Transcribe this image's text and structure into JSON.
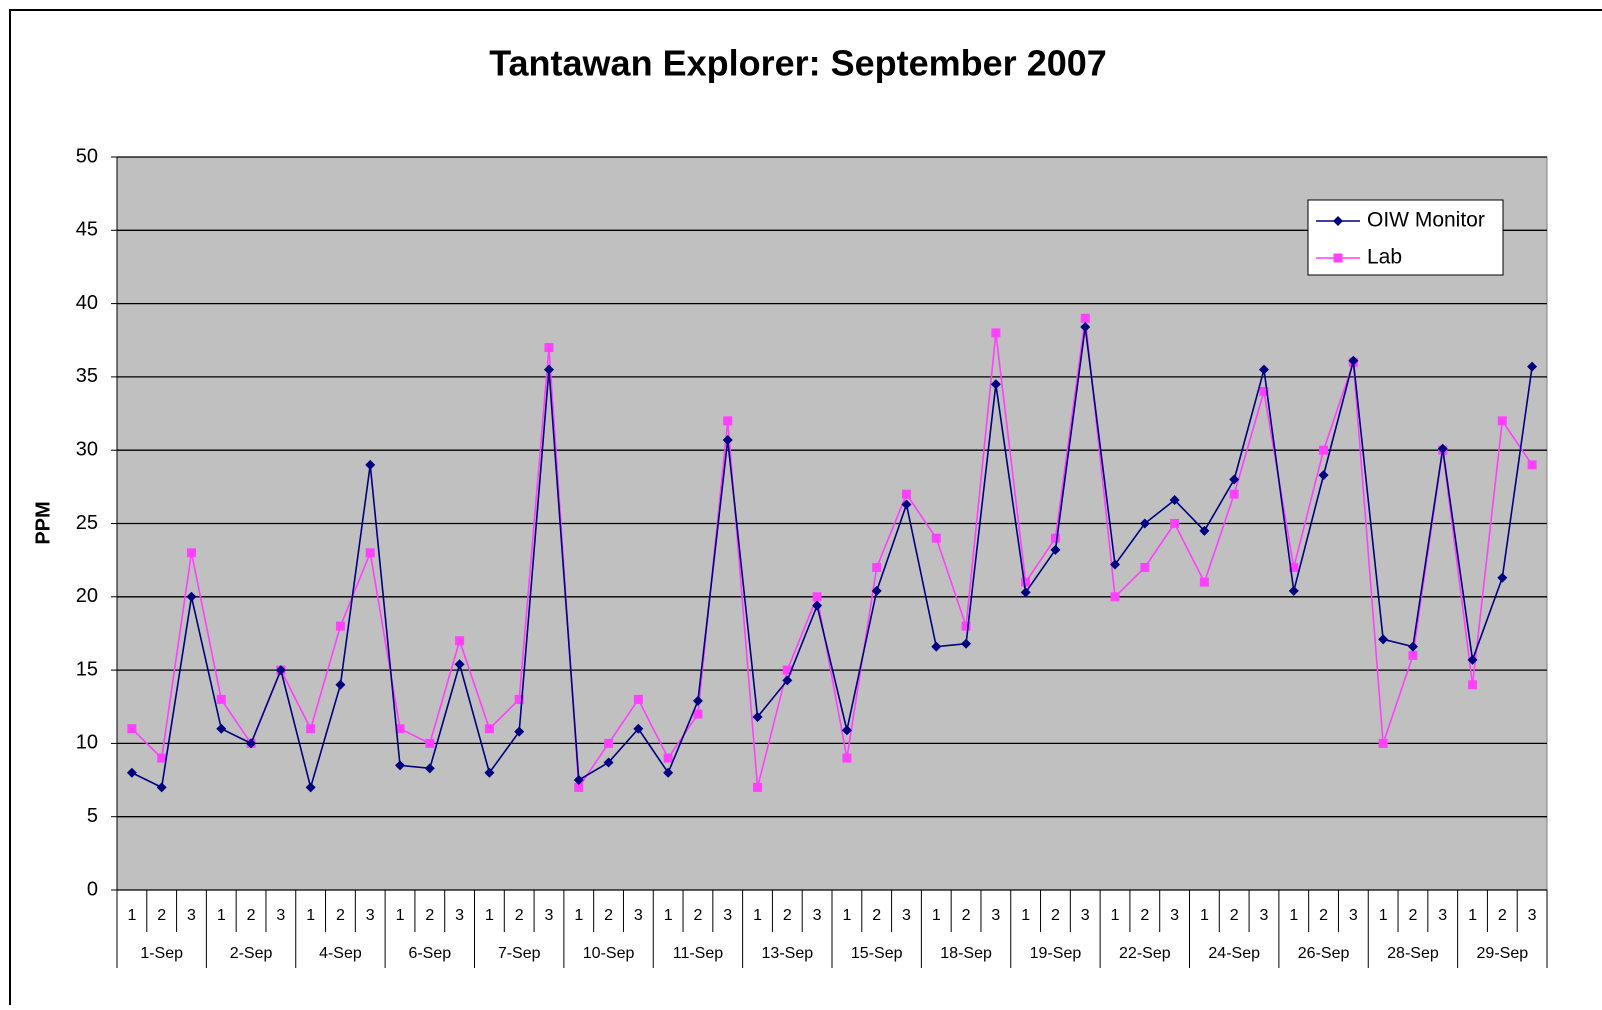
{
  "chart_data": {
    "type": "line",
    "title": "Tantawan Explorer: September 2007",
    "y_label": "PPM",
    "categories": [
      "1",
      "2",
      "3",
      "1",
      "2",
      "3",
      "1",
      "2",
      "3",
      "1",
      "2",
      "3",
      "1",
      "2",
      "3",
      "1",
      "2",
      "3",
      "1",
      "2",
      "3",
      "1",
      "2",
      "3",
      "1",
      "2",
      "3",
      "1",
      "2",
      "3",
      "1",
      "2",
      "3",
      "1",
      "2",
      "3",
      "1",
      "2",
      "3",
      "1",
      "2",
      "3",
      "1",
      "2",
      "3",
      "1",
      "2",
      "3"
    ],
    "category_groups": [
      "1-Sep",
      "2-Sep",
      "4-Sep",
      "6-Sep",
      "7-Sep",
      "10-Sep",
      "11-Sep",
      "13-Sep",
      "15-Sep",
      "18-Sep",
      "19-Sep",
      "22-Sep",
      "24-Sep",
      "26-Sep",
      "28-Sep",
      "29-Sep"
    ],
    "series": [
      {
        "name": "OIW Monitor",
        "color": "#000080",
        "marker": "diamond",
        "values": [
          8,
          7,
          20,
          11,
          10,
          15,
          7,
          14,
          29,
          8.5,
          8.3,
          15.4,
          8,
          10.8,
          35.5,
          7.5,
          8.7,
          11,
          8,
          12.9,
          30.7,
          11.8,
          14.3,
          19.4,
          10.9,
          20.4,
          26.3,
          16.6,
          16.8,
          34.5,
          20.3,
          23.2,
          38.4,
          22.2,
          25,
          26.6,
          24.5,
          28,
          35.5,
          20.4,
          28.3,
          36.1,
          17.1,
          16.6,
          30.1,
          15.7,
          21.3,
          35.7
        ]
      },
      {
        "name": "Lab",
        "color": "#ff40ff",
        "marker": "square",
        "values": [
          11,
          9,
          23,
          13,
          10,
          15,
          11,
          18,
          23,
          11,
          10,
          17,
          11,
          13,
          37,
          7,
          10,
          13,
          9,
          12,
          32,
          7,
          15,
          20,
          9,
          22,
          27,
          24,
          18,
          38,
          21,
          24,
          39,
          20,
          22,
          25,
          21,
          27,
          34,
          22,
          30,
          36,
          10,
          16,
          30,
          14,
          32,
          29
        ]
      }
    ],
    "ylim": [
      0,
      50
    ],
    "yticks": [
      0,
      5,
      10,
      15,
      20,
      25,
      30,
      35,
      40,
      45,
      50
    ],
    "grid": true,
    "legend": "upper right"
  }
}
